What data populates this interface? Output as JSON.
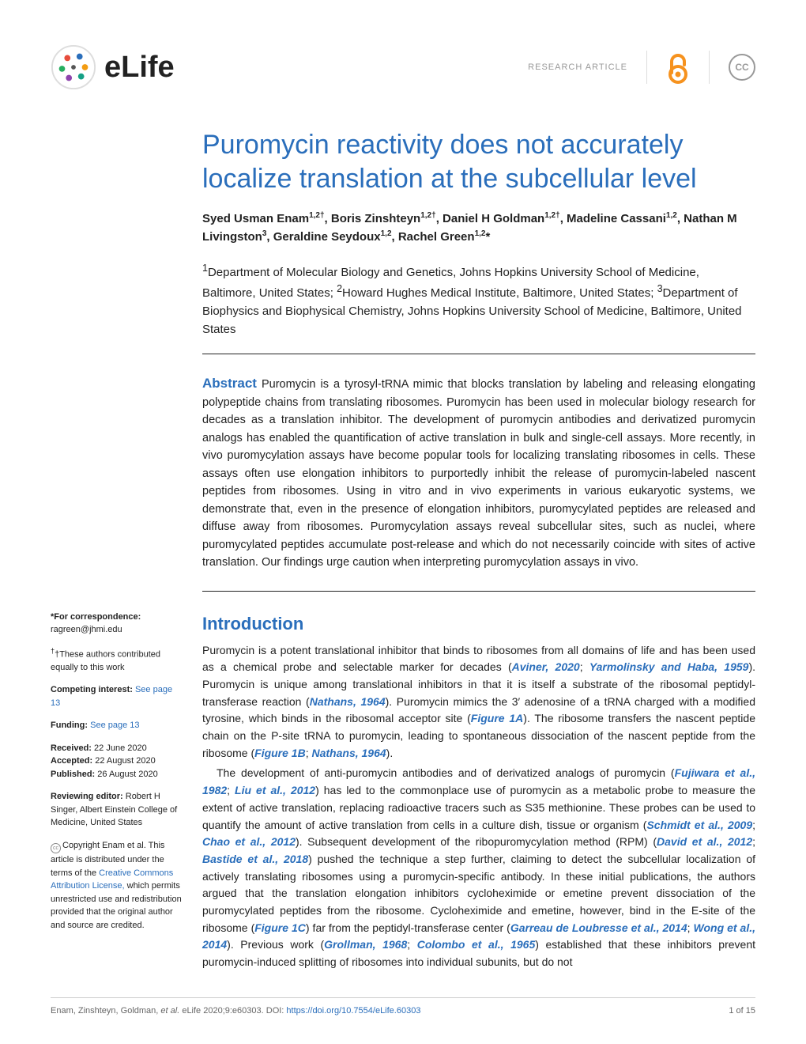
{
  "header": {
    "journal_name": "eLife",
    "article_type": "RESEARCH ARTICLE",
    "cc_label": "CC",
    "logo_colors": [
      "#2a6ebb",
      "#e74c3c",
      "#27ae60",
      "#f39c12",
      "#8e44ad",
      "#16a085"
    ]
  },
  "title": "Puromycin reactivity does not accurately localize translation at the subcellular level",
  "authors_html": "Syed Usman Enam<sup>1,2†</sup>, Boris Zinshteyn<sup>1,2†</sup>, Daniel H Goldman<sup>1,2†</sup>, Madeline Cassani<sup>1,2</sup>, Nathan M Livingston<sup>3</sup>, Geraldine Seydoux<sup>1,2</sup>, Rachel Green<sup>1,2</sup>*",
  "affiliations_html": "<sup>1</sup>Department of Molecular Biology and Genetics, Johns Hopkins University School of Medicine, Baltimore, United States; <sup>2</sup>Howard Hughes Medical Institute, Baltimore, United States; <sup>3</sup>Department of Biophysics and Biophysical Chemistry, Johns Hopkins University School of Medicine, Baltimore, United States",
  "abstract": {
    "label": "Abstract",
    "text": "Puromycin is a tyrosyl-tRNA mimic that blocks translation by labeling and releasing elongating polypeptide chains from translating ribosomes. Puromycin has been used in molecular biology research for decades as a translation inhibitor. The development of puromycin antibodies and derivatized puromycin analogs has enabled the quantification of active translation in bulk and single-cell assays. More recently, in vivo puromycylation assays have become popular tools for localizing translating ribosomes in cells. These assays often use elongation inhibitors to purportedly inhibit the release of puromycin-labeled nascent peptides from ribosomes. Using in vitro and in vivo experiments in various eukaryotic systems, we demonstrate that, even in the presence of elongation inhibitors, puromycylated peptides are released and diffuse away from ribosomes. Puromycylation assays reveal subcellular sites, such as nuclei, where puromycylated peptides accumulate post-release and which do not necessarily coincide with sites of active translation. Our findings urge caution when interpreting puromycylation assays in vivo."
  },
  "sidebar": {
    "correspondence_head": "*For correspondence:",
    "correspondence_email": "ragreen@jhmi.edu",
    "equal_contrib": "†These authors contributed equally to this work",
    "competing_head": "Competing interest:",
    "competing_link": "See page 13",
    "funding_head": "Funding:",
    "funding_link": "See page 13",
    "received_head": "Received:",
    "received_val": "22 June 2020",
    "accepted_head": "Accepted:",
    "accepted_val": "22 August 2020",
    "published_head": "Published:",
    "published_val": "26 August 2020",
    "reviewing_head": "Reviewing editor:",
    "reviewing_val": "Robert H Singer, Albert Einstein College of Medicine, United States",
    "copyright_text": "Copyright Enam et al. This article is distributed under the terms of the ",
    "cc_link": "Creative Commons Attribution License,",
    "copyright_tail": " which permits unrestricted use and redistribution provided that the original author and source are credited."
  },
  "intro": {
    "heading": "Introduction",
    "p1_pre": "Puromycin is a potent translational inhibitor that binds to ribosomes from all domains of life and has been used as a chemical probe and selectable marker for decades (",
    "p1_ref1": "Aviner, 2020",
    "p1_mid1": "; ",
    "p1_ref2": "Yarmolinsky and Haba, 1959",
    "p1_mid2": "). Puromycin is unique among translational inhibitors in that it is itself a substrate of the ribosomal peptidyl-transferase reaction (",
    "p1_ref3": "Nathans, 1964",
    "p1_mid3": "). Puromycin mimics the 3′ adenosine of a tRNA charged with a modified tyrosine, which binds in the ribosomal acceptor site (",
    "p1_fig1": "Figure 1A",
    "p1_mid4": "). The ribosome transfers the nascent peptide chain on the P-site tRNA to puromycin, leading to spontaneous dissociation of the nascent peptide from the ribosome (",
    "p1_fig2": "Figure 1B",
    "p1_mid5": "; ",
    "p1_ref4": "Nathans, 1964",
    "p1_tail": ").",
    "p2_pre": "The development of anti-puromycin antibodies and of derivatized analogs of puromycin (",
    "p2_ref1": "Fujiwara et al., 1982",
    "p2_mid1": "; ",
    "p2_ref2": "Liu et al., 2012",
    "p2_mid2": ") has led to the commonplace use of puromycin as a metabolic probe to measure the extent of active translation, replacing radioactive tracers such as S35 methionine. These probes can be used to quantify the amount of active translation from cells in a culture dish, tissue or organism (",
    "p2_ref3": "Schmidt et al., 2009",
    "p2_mid3": "; ",
    "p2_ref4": "Chao et al., 2012",
    "p2_mid4": "). Subsequent development of the ribopuromycylation method (RPM) (",
    "p2_ref5": "David et al., 2012",
    "p2_mid5": "; ",
    "p2_ref6": "Bastide et al., 2018",
    "p2_mid6": ") pushed the technique a step further, claiming to detect the subcellular localization of actively translating ribosomes using a puromycin-specific antibody. In these initial publications, the authors argued that the translation elongation inhibitors cycloheximide or emetine prevent dissociation of the puromycylated peptides from the ribosome. Cycloheximide and emetine, however, bind in the E-site of the ribosome (",
    "p2_fig1": "Figure 1C",
    "p2_mid7": ") far from the peptidyl-transferase center (",
    "p2_ref7": "Garreau de Loubresse et al., 2014",
    "p2_mid8": "; ",
    "p2_ref8": "Wong et al., 2014",
    "p2_mid9": "). Previous work (",
    "p2_ref9": "Grollman, 1968",
    "p2_mid10": "; ",
    "p2_ref10": "Colombo et al., 1965",
    "p2_tail": ") established that these inhibitors prevent puromycin-induced splitting of ribosomes into individual subunits, but do not"
  },
  "footer": {
    "citation_pre": "Enam, Zinshteyn, Goldman, ",
    "citation_post": " eLife 2020;9:e60303. ",
    "doi_label": "DOI: ",
    "doi": "https://doi.org/10.7554/eLife.60303",
    "page": "1 of 15",
    "etal": "et al."
  },
  "colors": {
    "brand_blue": "#2a6ebb",
    "text": "#222222",
    "gray": "#999999",
    "oa_orange": "#f6921e"
  }
}
